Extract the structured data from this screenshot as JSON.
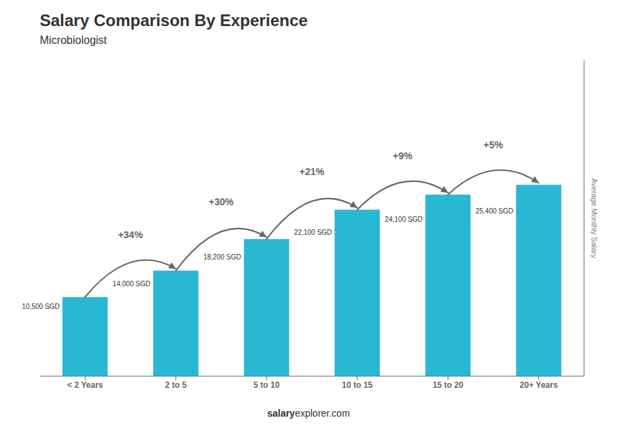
{
  "chart_data": {
    "type": "bar",
    "title": "Salary Comparison By Experience",
    "subtitle": "Microbiologist",
    "categories": [
      "< 2 Years",
      "2 to 5",
      "5 to 10",
      "10 to 15",
      "15 to 20",
      "20+ Years"
    ],
    "values": [
      10500,
      14000,
      18200,
      22100,
      24100,
      25400
    ],
    "value_labels": [
      "10,500 SGD",
      "14,000 SGD",
      "18,200 SGD",
      "22,100 SGD",
      "24,100 SGD",
      "25,400 SGD"
    ],
    "data_labels": true,
    "color": "#29b8d4",
    "ylabel": "Average Monthly Salary",
    "ylim": [
      0,
      41910
    ],
    "yticks": [],
    "tick_labels": "x",
    "grid": false,
    "annotations": [
      "+34%",
      "+30%",
      "+21%",
      "+9%",
      "+5%"
    ],
    "footer": [
      "salary",
      "explorer.com"
    ]
  }
}
